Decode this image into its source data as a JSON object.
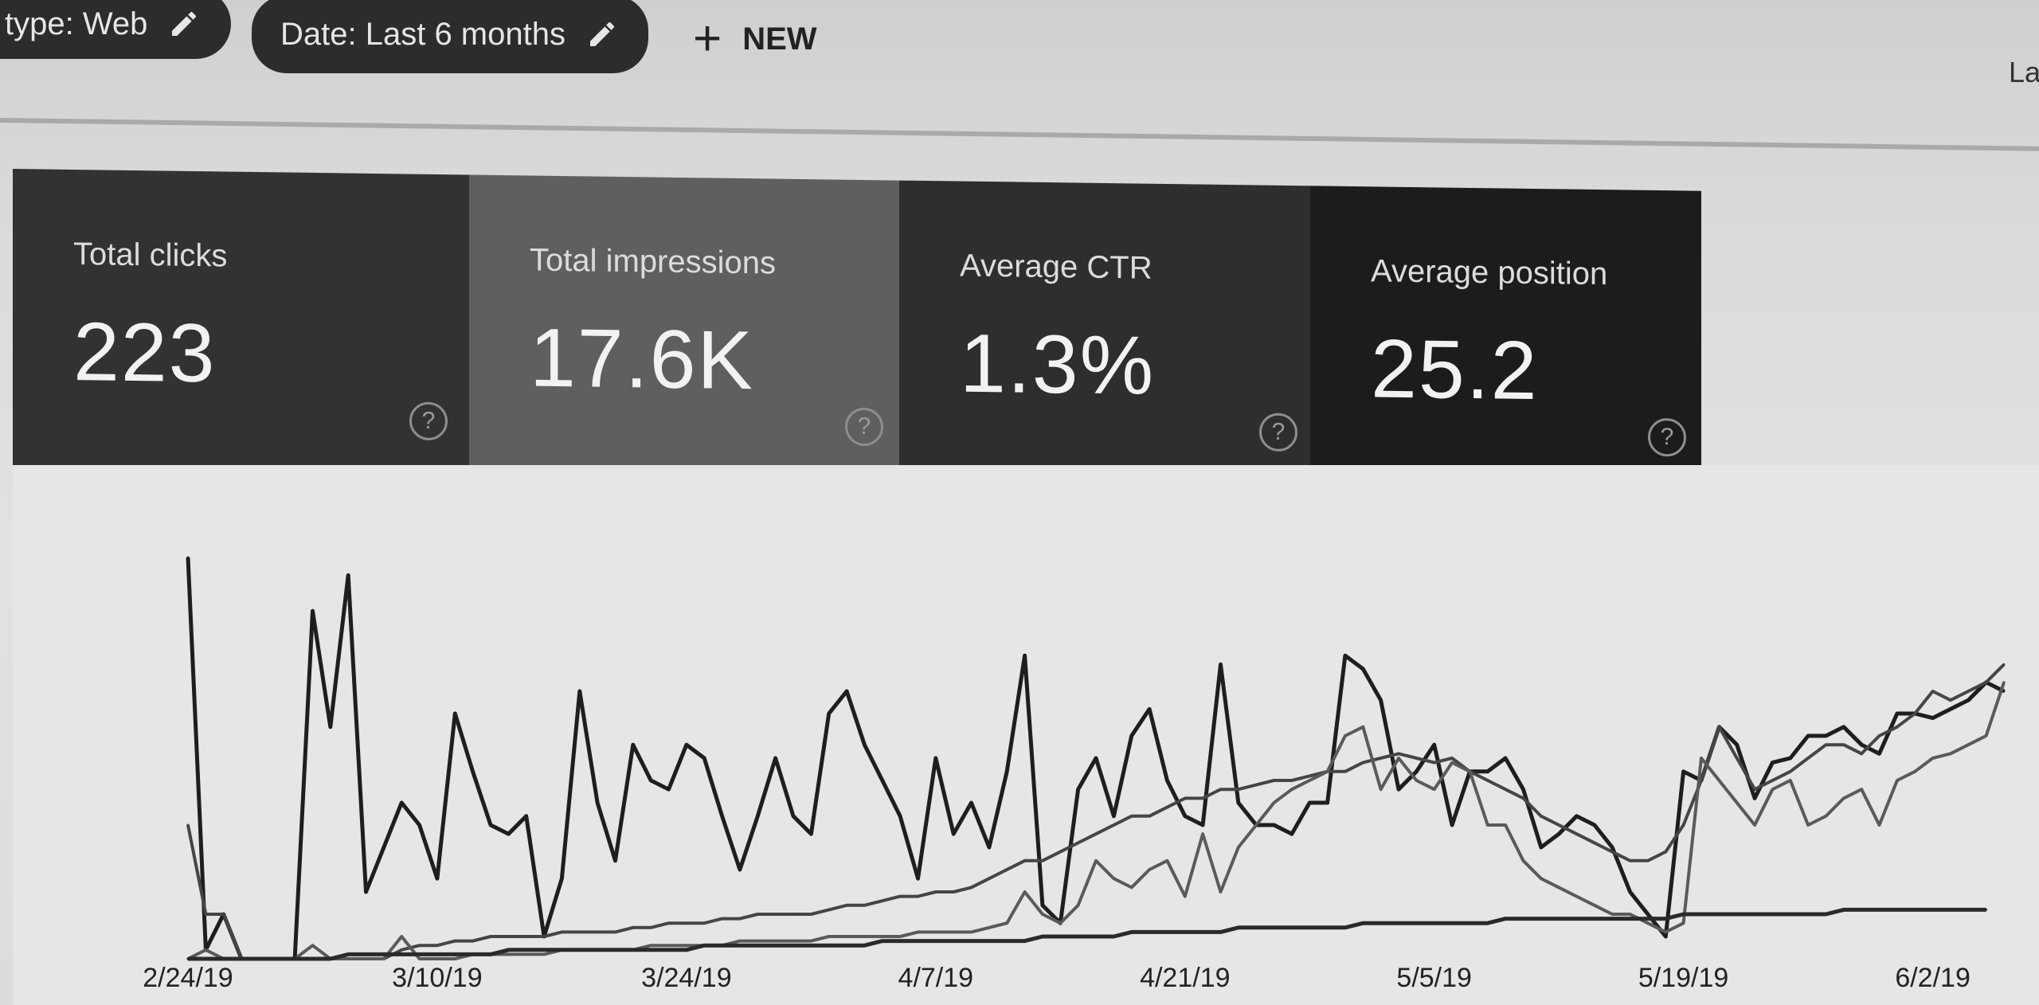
{
  "filters": {
    "type_chip": "type: Web",
    "date_chip": "Date: Last 6 months",
    "new_button": "NEW",
    "top_right_fragment": "La"
  },
  "metrics": [
    {
      "label": "Total clicks",
      "value": "223"
    },
    {
      "label": "Total impressions",
      "value": "17.6K"
    },
    {
      "label": "Average CTR",
      "value": "1.3%"
    },
    {
      "label": "Average position",
      "value": "25.2"
    }
  ],
  "help_glyph": "?",
  "colors": {
    "card_clicks": "#323232",
    "card_impressions": "#5f5f5f",
    "card_ctr": "#2e2e2e",
    "card_position": "#1c1c1c",
    "series_1": "#1e1e1e",
    "series_2": "#454545",
    "series_3": "#5a5a5a",
    "series_4": "#2a2a2a"
  },
  "icons": {
    "edit": "pencil-icon",
    "add": "plus-icon",
    "help": "help-circle-icon"
  },
  "chart_data": {
    "type": "line",
    "x_tick_labels": [
      "2/24/19",
      "3/10/19",
      "3/24/19",
      "4/7/19",
      "4/21/19",
      "5/5/19",
      "5/19/19",
      "6/2/19"
    ],
    "x_tick_index": [
      0,
      14,
      28,
      42,
      56,
      70,
      84,
      98
    ],
    "grid": false,
    "legend": "none",
    "ylim": [
      0,
      100
    ],
    "series": [
      {
        "values": [
          90,
          2,
          10,
          0,
          0,
          0,
          0,
          78,
          52,
          86,
          15,
          25,
          35,
          30,
          18,
          55,
          42,
          30,
          28,
          32,
          5,
          18,
          60,
          35,
          22,
          48,
          40,
          38,
          48,
          45,
          32,
          20,
          32,
          45,
          32,
          28,
          55,
          60,
          48,
          40,
          32,
          18,
          45,
          28,
          35,
          25,
          42,
          68,
          12,
          8,
          38,
          45,
          32,
          50,
          56,
          40,
          32,
          30,
          66,
          35,
          30,
          30,
          28,
          35,
          35,
          68,
          65,
          58,
          38,
          42,
          48,
          30,
          42,
          42,
          45,
          38,
          25,
          28,
          32,
          30,
          25,
          15,
          10,
          5,
          42,
          40,
          52,
          48,
          36,
          44,
          45,
          50,
          50,
          52,
          48,
          46,
          55,
          55,
          54,
          56,
          58,
          62,
          60
        ],
        "style": "main"
      },
      {
        "values": [
          30,
          10,
          10,
          0,
          0,
          0,
          0,
          0,
          0,
          0,
          0,
          0,
          2,
          3,
          3,
          4,
          4,
          5,
          5,
          5,
          5,
          6,
          6,
          6,
          6,
          7,
          7,
          8,
          8,
          8,
          9,
          9,
          10,
          10,
          10,
          10,
          11,
          12,
          12,
          13,
          14,
          14,
          15,
          15,
          16,
          18,
          20,
          22,
          22,
          24,
          26,
          28,
          30,
          32,
          32,
          34,
          36,
          36,
          38,
          38,
          39,
          40,
          40,
          41,
          42,
          42,
          44,
          45,
          46,
          45,
          44,
          45,
          42,
          40,
          38,
          36,
          32,
          30,
          28,
          26,
          24,
          22,
          22,
          24,
          30,
          40,
          52,
          45,
          38,
          40,
          42,
          45,
          48,
          48,
          46,
          50,
          52,
          55,
          60,
          58,
          60,
          62,
          66
        ],
        "style": "impressions"
      },
      {
        "values": [
          0,
          2,
          0,
          0,
          0,
          0,
          0,
          3,
          0,
          0,
          0,
          0,
          5,
          0,
          0,
          0,
          1,
          1,
          1,
          1,
          1,
          2,
          2,
          2,
          2,
          2,
          3,
          3,
          3,
          3,
          3,
          4,
          4,
          4,
          4,
          4,
          5,
          5,
          5,
          5,
          5,
          6,
          6,
          6,
          6,
          7,
          8,
          15,
          10,
          8,
          12,
          22,
          18,
          16,
          20,
          22,
          14,
          28,
          15,
          25,
          30,
          35,
          38,
          40,
          42,
          50,
          52,
          38,
          45,
          40,
          38,
          44,
          42,
          30,
          30,
          22,
          18,
          16,
          14,
          12,
          10,
          10,
          8,
          6,
          8,
          45,
          40,
          35,
          30,
          38,
          40,
          30,
          32,
          36,
          38,
          30,
          40,
          42,
          45,
          46,
          48,
          50,
          62
        ],
        "style": "ctr"
      },
      {
        "values": [
          0,
          0,
          0,
          0,
          0,
          0,
          0,
          0,
          0,
          1,
          1,
          1,
          1,
          1,
          1,
          1,
          1,
          1,
          2,
          2,
          2,
          2,
          2,
          2,
          2,
          2,
          2,
          2,
          2,
          3,
          3,
          3,
          3,
          3,
          3,
          3,
          3,
          3,
          3,
          4,
          4,
          4,
          4,
          4,
          4,
          4,
          4,
          4,
          5,
          5,
          5,
          5,
          5,
          6,
          6,
          6,
          6,
          6,
          6,
          7,
          7,
          7,
          7,
          7,
          7,
          7,
          8,
          8,
          8,
          8,
          8,
          8,
          8,
          8,
          9,
          9,
          9,
          9,
          9,
          9,
          9,
          9,
          9,
          9,
          10,
          10,
          10,
          10,
          10,
          10,
          10,
          10,
          10,
          11,
          11,
          11,
          11,
          11,
          11,
          11,
          11,
          11
        ],
        "style": "position"
      }
    ]
  }
}
